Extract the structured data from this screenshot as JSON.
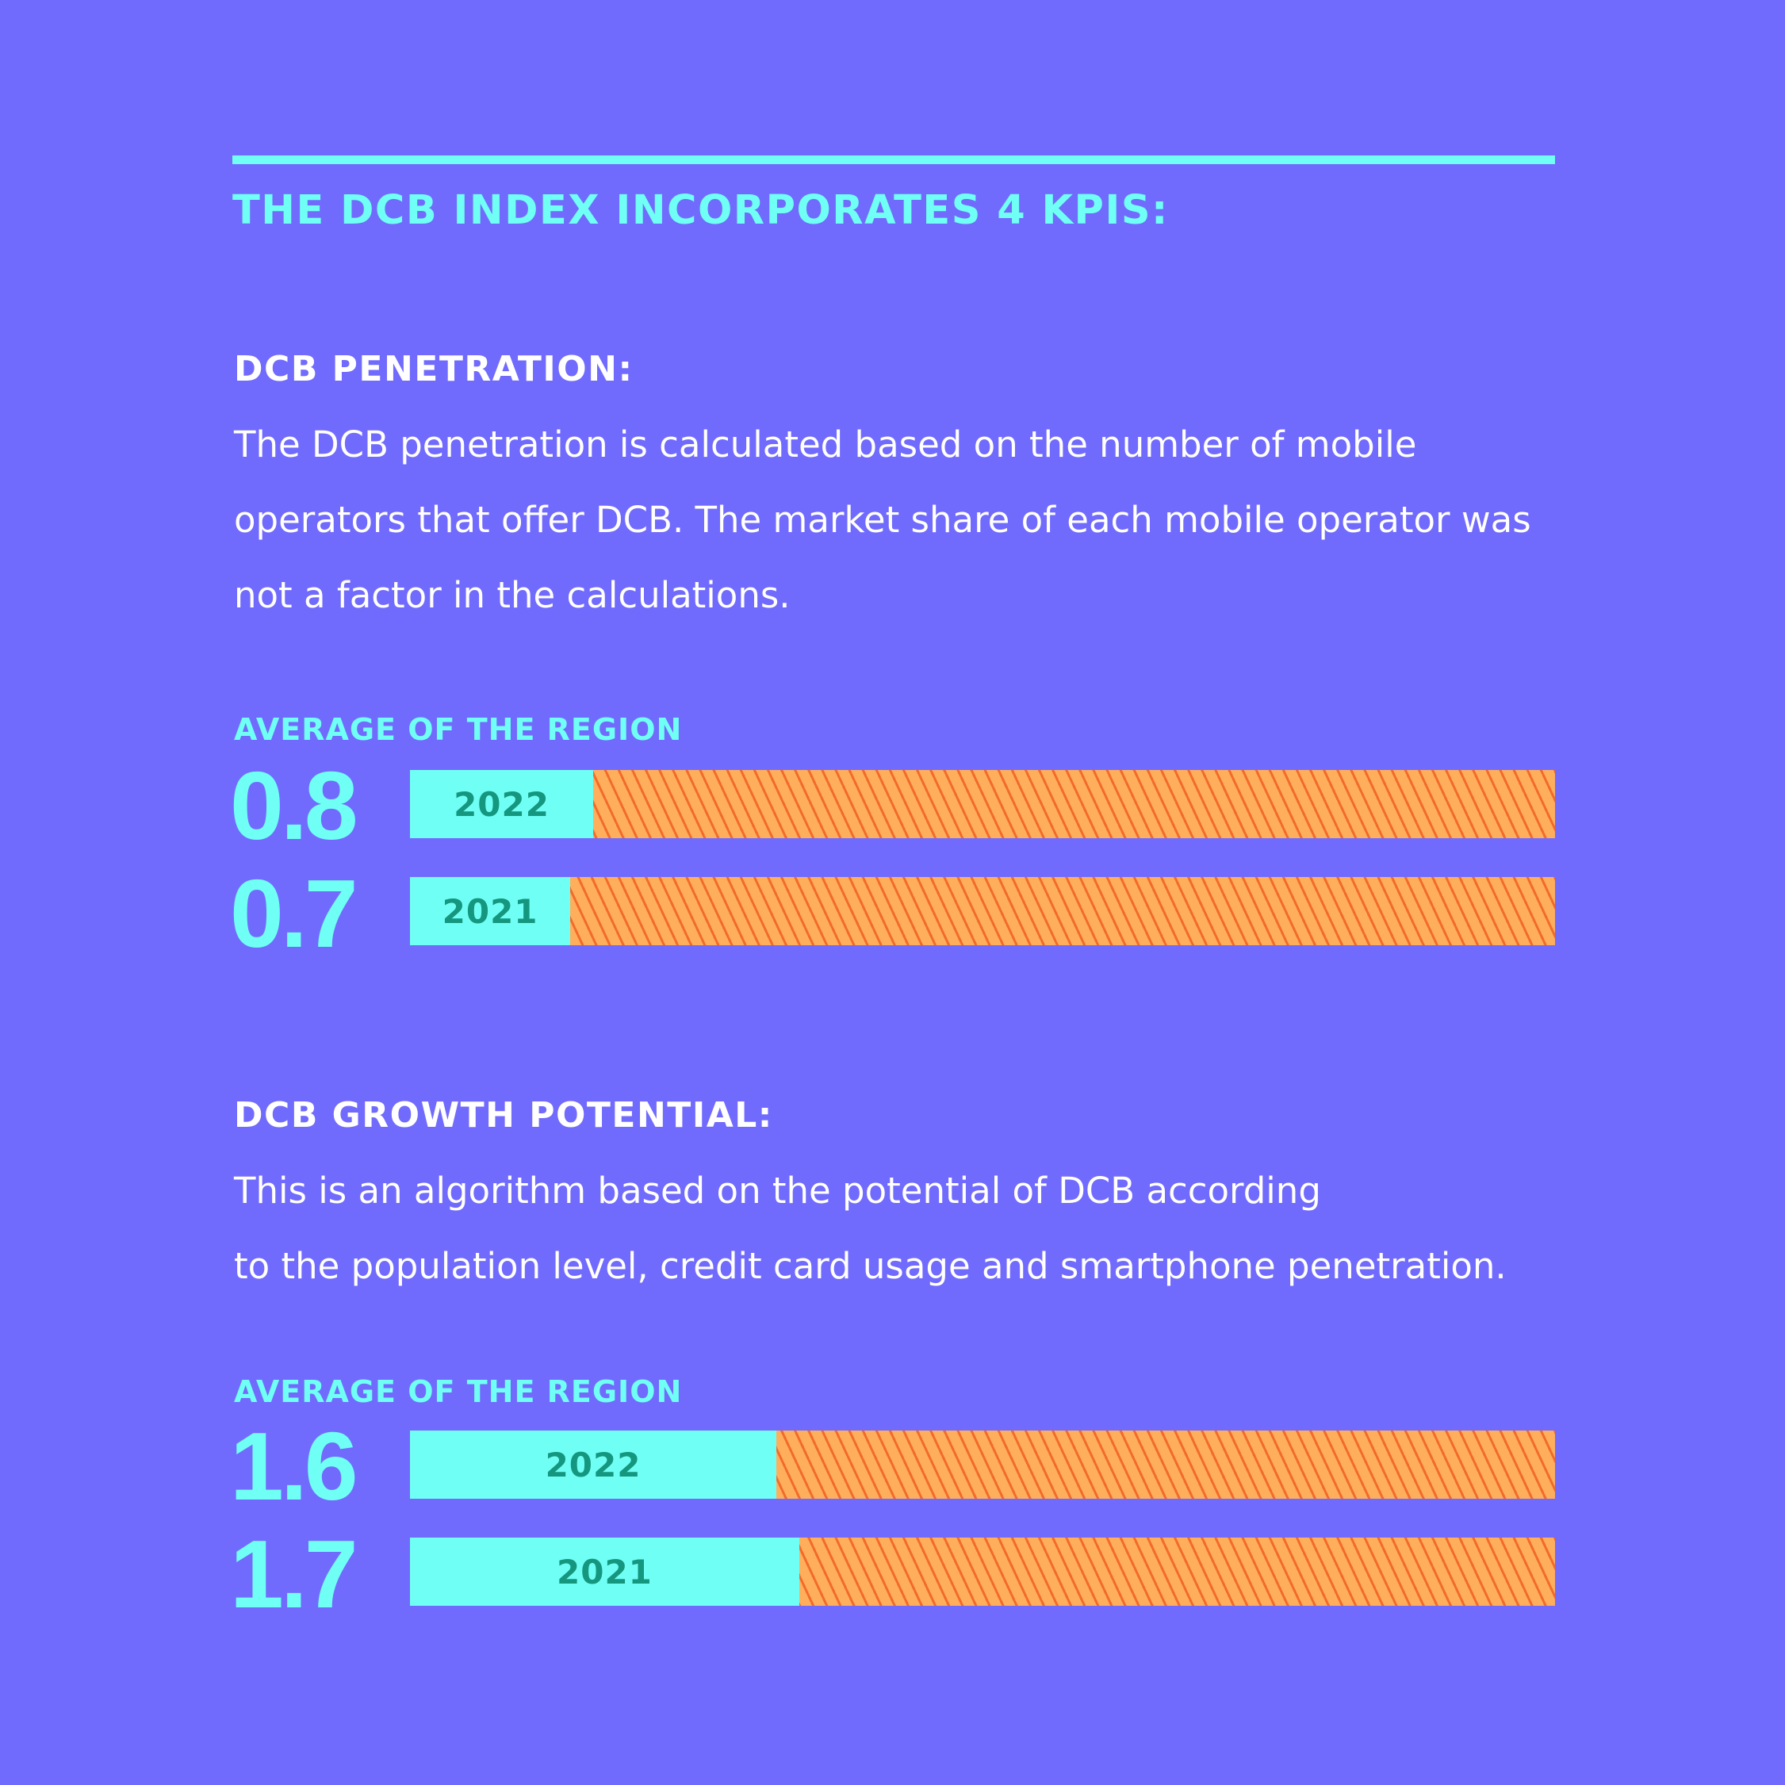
{
  "heading": "THE DCB INDEX INCORPORATES 4 KPIS:",
  "colors": {
    "background": "#716bfd",
    "accent": "#70fff5",
    "bar_remainder": "#ffae5c",
    "hatch": "#f26b2b",
    "year_text": "#15967e"
  },
  "sections": [
    {
      "title": "DCB PENETRATION:",
      "lines": [
        "The DCB penetration is calculated based on the number of mobile",
        "operators that offer DCB. The market share of each mobile operator was",
        "not a factor in the calculations."
      ],
      "avg_label": "AVERAGE OF THE REGION"
    },
    {
      "title": "DCB GROWTH POTENTIAL:",
      "lines": [
        "This is an algorithm based on the potential of DCB according",
        "to the population level, credit card usage and smartphone penetration."
      ],
      "avg_label": "AVERAGE OF THE REGION"
    }
  ],
  "chart_data": [
    {
      "type": "bar",
      "orientation": "horizontal",
      "categories": [
        "2022",
        "2021"
      ],
      "values": [
        0.8,
        0.7
      ],
      "value_labels": [
        "0.8",
        "0.7"
      ],
      "xlim": [
        0,
        5
      ]
    },
    {
      "type": "bar",
      "orientation": "horizontal",
      "categories": [
        "2022",
        "2021"
      ],
      "values": [
        1.6,
        1.7
      ],
      "value_labels": [
        "1.6",
        "1.7"
      ],
      "xlim": [
        0,
        5
      ]
    }
  ]
}
